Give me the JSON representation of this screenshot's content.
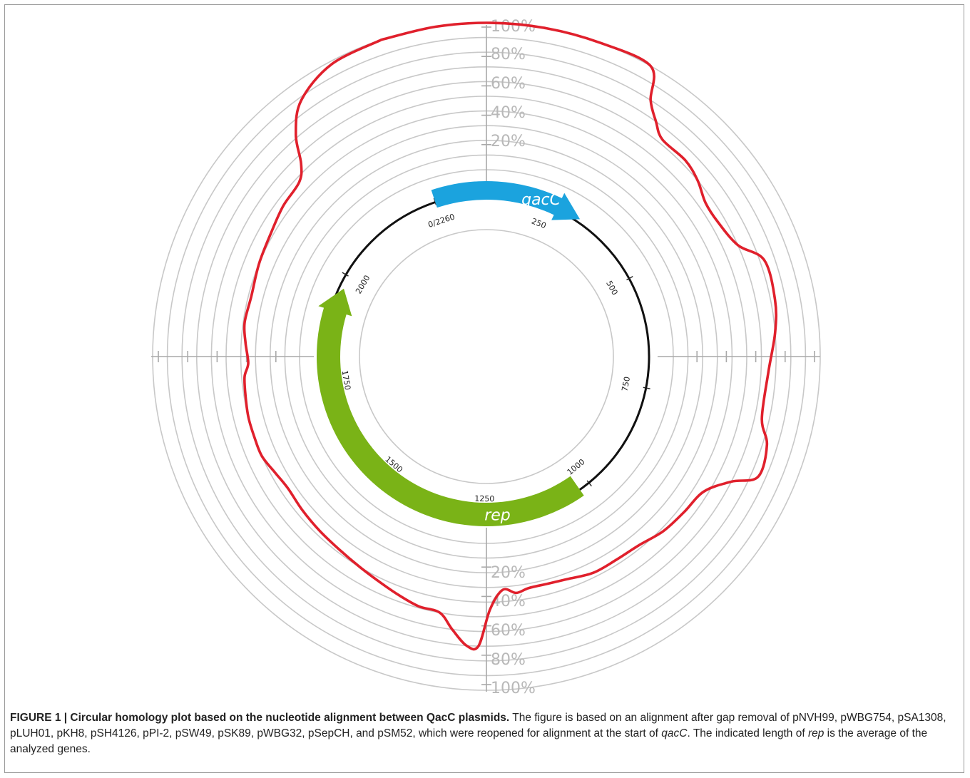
{
  "figure": {
    "caption_head": "FIGURE 1 | Circular homology plot based on the nucleotide alignment between QacC plasmids.",
    "caption_body_1": " The figure is based on an alignment after gap removal of pNVH99, pWBG754, pSA1308, pLUH01, pKH8, pSH4126, pPI-2, pSW49, pSK89, pWBG32, pSepCH, and pSM52, which were reopened for alignment at the start of ",
    "caption_italic_1": "qacC",
    "caption_body_2": ". The indicated length of ",
    "caption_italic_2": "rep",
    "caption_body_3": " is the average of the analyzed genes."
  },
  "chart_data": {
    "type": "circular-homology",
    "plasmid_length_bp": 2260,
    "origin_label": "0/2260",
    "position_ticks": [
      250,
      500,
      750,
      1000,
      1250,
      1500,
      1750,
      2000
    ],
    "genes": [
      {
        "name": "qacC",
        "start": 0,
        "end": 330,
        "color": "#1ba3de"
      },
      {
        "name": "rep",
        "start": 1025,
        "end": 1970,
        "color": "#7ab317"
      }
    ],
    "identity_axis_labels_top": [
      "20%",
      "40%",
      "60%",
      "80%",
      "100%"
    ],
    "identity_axis_labels_bottom": [
      "20%",
      "40%",
      "60%",
      "80%",
      "100%"
    ],
    "identity_curve_color": "#e0202c",
    "identity_curve": [
      {
        "pos": 0,
        "identity": 100
      },
      {
        "pos": 60,
        "identity": 100
      },
      {
        "pos": 120,
        "identity": 100
      },
      {
        "pos": 180,
        "identity": 100
      },
      {
        "pos": 240,
        "identity": 100
      },
      {
        "pos": 300,
        "identity": 100
      },
      {
        "pos": 320,
        "identity": 80
      },
      {
        "pos": 340,
        "identity": 70
      },
      {
        "pos": 360,
        "identity": 63
      },
      {
        "pos": 400,
        "identity": 63
      },
      {
        "pos": 430,
        "identity": 60
      },
      {
        "pos": 460,
        "identity": 55
      },
      {
        "pos": 490,
        "identity": 55
      },
      {
        "pos": 530,
        "identity": 60
      },
      {
        "pos": 560,
        "identity": 73
      },
      {
        "pos": 610,
        "identity": 73
      },
      {
        "pos": 650,
        "identity": 70
      },
      {
        "pos": 700,
        "identity": 65
      },
      {
        "pos": 760,
        "identity": 65
      },
      {
        "pos": 790,
        "identity": 73
      },
      {
        "pos": 830,
        "identity": 75
      },
      {
        "pos": 850,
        "identity": 60
      },
      {
        "pos": 880,
        "identity": 47
      },
      {
        "pos": 920,
        "identity": 44
      },
      {
        "pos": 960,
        "identity": 42
      },
      {
        "pos": 1000,
        "identity": 38
      },
      {
        "pos": 1040,
        "identity": 37
      },
      {
        "pos": 1080,
        "identity": 37
      },
      {
        "pos": 1120,
        "identity": 34
      },
      {
        "pos": 1150,
        "identity": 33
      },
      {
        "pos": 1180,
        "identity": 33
      },
      {
        "pos": 1200,
        "identity": 35
      },
      {
        "pos": 1220,
        "identity": 32
      },
      {
        "pos": 1240,
        "identity": 45
      },
      {
        "pos": 1255,
        "identity": 70
      },
      {
        "pos": 1270,
        "identity": 70
      },
      {
        "pos": 1290,
        "identity": 60
      },
      {
        "pos": 1310,
        "identity": 50
      },
      {
        "pos": 1340,
        "identity": 49
      },
      {
        "pos": 1370,
        "identity": 46
      },
      {
        "pos": 1400,
        "identity": 43
      },
      {
        "pos": 1440,
        "identity": 40
      },
      {
        "pos": 1480,
        "identity": 38
      },
      {
        "pos": 1520,
        "identity": 37
      },
      {
        "pos": 1560,
        "identity": 36
      },
      {
        "pos": 1600,
        "identity": 35
      },
      {
        "pos": 1630,
        "identity": 37
      },
      {
        "pos": 1660,
        "identity": 40
      },
      {
        "pos": 1690,
        "identity": 40
      },
      {
        "pos": 1720,
        "identity": 40
      },
      {
        "pos": 1750,
        "identity": 39
      },
      {
        "pos": 1780,
        "identity": 38
      },
      {
        "pos": 1800,
        "identity": 35
      },
      {
        "pos": 1830,
        "identity": 37
      },
      {
        "pos": 1860,
        "identity": 39
      },
      {
        "pos": 1900,
        "identity": 38
      },
      {
        "pos": 1950,
        "identity": 40
      },
      {
        "pos": 2000,
        "identity": 42
      },
      {
        "pos": 2040,
        "identity": 45
      },
      {
        "pos": 2080,
        "identity": 47
      },
      {
        "pos": 2100,
        "identity": 55
      },
      {
        "pos": 2120,
        "identity": 72
      },
      {
        "pos": 2150,
        "identity": 88
      },
      {
        "pos": 2200,
        "identity": 98
      },
      {
        "pos": 2260,
        "identity": 100
      }
    ]
  }
}
